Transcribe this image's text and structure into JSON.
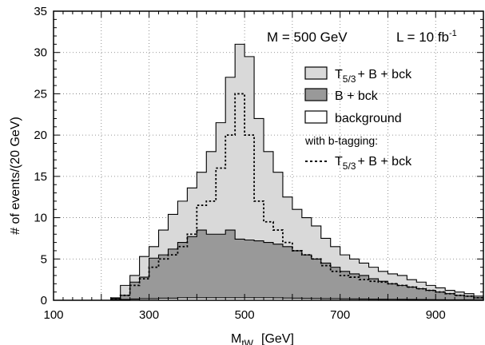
{
  "chart_data": {
    "type": "histogram",
    "title": "",
    "xlabel": "M_tW  [GeV]",
    "xlabel_main": "M",
    "xlabel_sub": "tW",
    "xlabel_unit": "[GeV]",
    "ylabel": "# of events/(20 GeV)",
    "xlim": [
      100,
      1000
    ],
    "ylim": [
      0,
      35
    ],
    "xticks": [
      100,
      300,
      500,
      700,
      900
    ],
    "yticks": [
      0,
      5,
      10,
      15,
      20,
      25,
      30,
      35
    ],
    "grid": true,
    "bin_width": 20,
    "bin_edges_start": 220,
    "series": [
      {
        "name": "T5/3 + B + bck",
        "style": "filled-light",
        "color": "#d9d9d9",
        "values": [
          0.3,
          1.8,
          3.0,
          5.3,
          6.5,
          8.5,
          10.4,
          12.0,
          13.6,
          15.5,
          18.0,
          21.5,
          27.0,
          31.0,
          29.5,
          22.0,
          18.0,
          15.5,
          12.5,
          11.0,
          10.0,
          9.0,
          7.5,
          6.5,
          5.5,
          5.0,
          4.5,
          4.0,
          3.5,
          3.2,
          3.0,
          2.5,
          2.2,
          1.8,
          1.5,
          1.2,
          1.0,
          0.8,
          0.5
        ]
      },
      {
        "name": "B + bck",
        "style": "filled-dark",
        "color": "#999999",
        "values": [
          0.2,
          0.6,
          2.2,
          2.8,
          5.1,
          5.5,
          6.2,
          7.0,
          7.7,
          8.5,
          8.0,
          8.0,
          8.5,
          7.4,
          7.3,
          7.2,
          7.0,
          6.8,
          6.5,
          6.0,
          5.5,
          5.0,
          4.5,
          4.0,
          3.5,
          3.2,
          3.0,
          2.6,
          2.3,
          2.0,
          1.8,
          1.6,
          1.4,
          1.2,
          1.0,
          0.8,
          0.6,
          0.5,
          0.3
        ]
      },
      {
        "name": "background",
        "style": "filled-white",
        "color": "#ffffff",
        "values": [
          0.05,
          0.1,
          0.15,
          0.2,
          0.2,
          0.25,
          0.25,
          0.3,
          0.3,
          0.3,
          0.3,
          0.3,
          0.3,
          0.3,
          0.3,
          0.3,
          0.3,
          0.28,
          0.26,
          0.25,
          0.24,
          0.22,
          0.2,
          0.2,
          0.18,
          0.16,
          0.15,
          0.14,
          0.13,
          0.12,
          0.11,
          0.1,
          0.09,
          0.08,
          0.07,
          0.06,
          0.05,
          0.05,
          0.04
        ]
      },
      {
        "name": "T5/3 + B + bck (with b-tagging)",
        "style": "dotted-line",
        "color": "#000000",
        "values": [
          0.2,
          0.6,
          1.8,
          2.6,
          4.0,
          5.0,
          5.5,
          6.5,
          8.0,
          11.5,
          12.0,
          16.0,
          20.0,
          25.0,
          20.0,
          12.0,
          9.5,
          8.5,
          7.0,
          6.0,
          5.5,
          5.0,
          4.2,
          3.5,
          3.0,
          2.8,
          2.5,
          2.3,
          2.2,
          2.0,
          1.8,
          1.6,
          1.4,
          1.2,
          1.0,
          0.8,
          0.6,
          0.5,
          0.3
        ]
      }
    ],
    "annotations": {
      "mass": "M = 500 GeV",
      "lumi_main": "L = 10 fb",
      "lumi_sup": "-1"
    },
    "legend": {
      "placement": "top-right",
      "entries": [
        {
          "main": "T",
          "sub": "5/3",
          "rest": "+ B + bck",
          "style": "filled-light"
        },
        {
          "main": "B + bck",
          "sub": "",
          "rest": "",
          "style": "filled-dark"
        },
        {
          "main": "background",
          "sub": "",
          "rest": "",
          "style": "filled-white"
        }
      ],
      "subheader": "with b-tagging:",
      "dotted_entry": {
        "main": "T",
        "sub": "5/3",
        "rest": "+ B + bck",
        "style": "dotted-line"
      }
    }
  }
}
